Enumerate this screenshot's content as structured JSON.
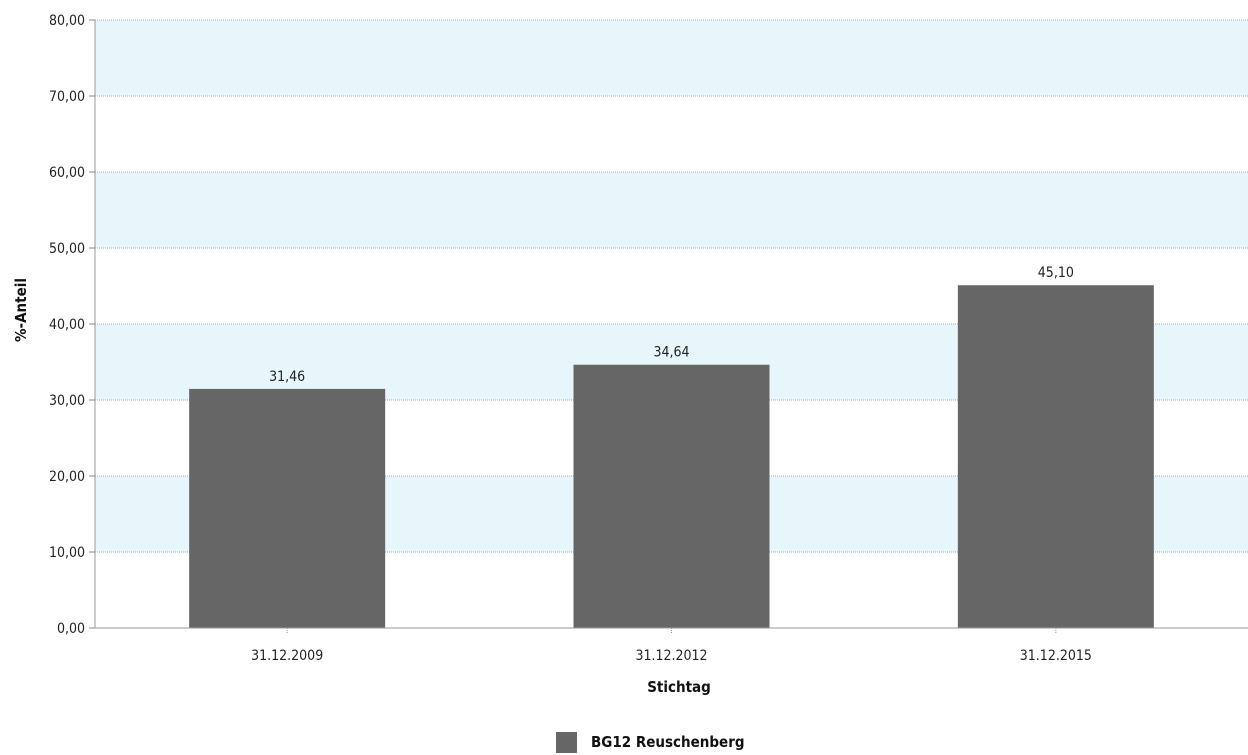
{
  "chart_data": {
    "type": "bar",
    "categories": [
      "31.12.2009",
      "31.12.2012",
      "31.12.2015"
    ],
    "series": [
      {
        "name": "BG12 Reuschenberg",
        "values": [
          31.46,
          34.64,
          45.1
        ],
        "value_labels": [
          "31,46",
          "34,64",
          "45,10"
        ],
        "color": "#666666"
      }
    ],
    "ylim": [
      0,
      80
    ],
    "yticks": [
      0,
      10,
      20,
      30,
      40,
      50,
      60,
      70,
      80
    ],
    "ytick_labels": [
      "0,00",
      "10,00",
      "20,00",
      "30,00",
      "40,00",
      "50,00",
      "60,00",
      "70,00",
      "80,00"
    ],
    "xlabel": "Stichtag",
    "ylabel": "%-Anteil",
    "grid": true,
    "band_color": "#e6f6fb",
    "legend_position": "bottom-center"
  }
}
